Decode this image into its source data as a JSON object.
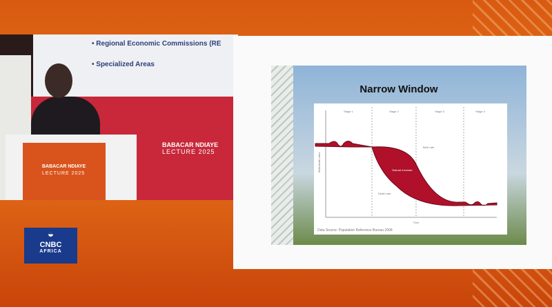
{
  "video": {
    "screen_bullets": [
      "Regional Economic Commissions (RE",
      "Specialized Areas"
    ],
    "backdrop_brand": {
      "line1": "BABACAR NDIAYE",
      "line2": "LECTURE 2025"
    },
    "podium_brand": {
      "line1": "BABACAR NDIAYE",
      "line2": "LECTURE 2025"
    }
  },
  "slide": {
    "title": "Narrow Window",
    "chart_data": {
      "type": "area",
      "title": "Narrow Window",
      "xlabel": "Time",
      "ylabel": "Birth/death rates",
      "stages": [
        "Stage 1",
        "Stage 2",
        "Stage 3",
        "Stage 4"
      ],
      "series": [
        {
          "name": "Birth rate"
        },
        {
          "name": "Death rate"
        }
      ],
      "annotations": [
        "Birth rate",
        "Death rate",
        "Natural Increase"
      ],
      "source": "Data Source: Population Reference Bureau 2008",
      "fill_color": "#b0102a"
    }
  },
  "logo": {
    "line1": "CNBC",
    "line2": "AFRICA"
  }
}
